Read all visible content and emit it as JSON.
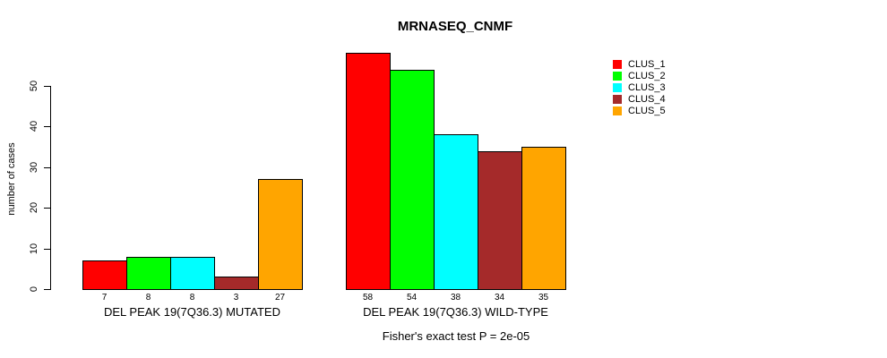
{
  "chart_data": {
    "type": "bar",
    "title": "MRNASEQ_CNMF",
    "ylabel": "number of cases",
    "xlabel": "",
    "ylim": [
      0,
      50
    ],
    "yticks": [
      0,
      10,
      20,
      30,
      40,
      50
    ],
    "grid": false,
    "bar_border_color": "#000000",
    "background_color": "#FFFFFF",
    "categories": [
      "DEL PEAK 19(7Q36.3) MUTATED",
      "DEL PEAK 19(7Q36.3) WILD-TYPE"
    ],
    "series": [
      {
        "name": "CLUS_1",
        "color": "#FF0000",
        "values": [
          7,
          58
        ]
      },
      {
        "name": "CLUS_2",
        "color": "#00FF00",
        "values": [
          8,
          54
        ]
      },
      {
        "name": "CLUS_3",
        "color": "#00FFFF",
        "values": [
          8,
          38
        ]
      },
      {
        "name": "CLUS_4",
        "color": "#A52A2A",
        "values": [
          3,
          34
        ]
      },
      {
        "name": "CLUS_5",
        "color": "#FFA500",
        "values": [
          27,
          35
        ]
      }
    ],
    "value_labels": [
      [
        7,
        8,
        8,
        3,
        27
      ],
      [
        58,
        54,
        38,
        34,
        35
      ]
    ],
    "legend": {
      "position": "right",
      "entries": [
        "CLUS_1",
        "CLUS_2",
        "CLUS_3",
        "CLUS_4",
        "CLUS_5"
      ],
      "colors": [
        "#FF0000",
        "#00FF00",
        "#00FFFF",
        "#A52A2A",
        "#FFA500"
      ]
    },
    "annotation": "Fisher's exact test P = 2e-05"
  }
}
